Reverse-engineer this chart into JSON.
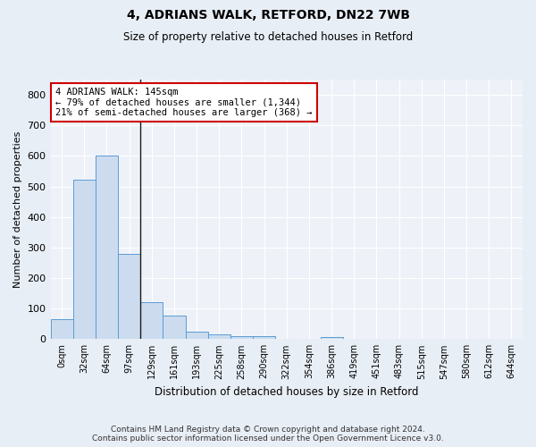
{
  "title_line1": "4, ADRIANS WALK, RETFORD, DN22 7WB",
  "title_line2": "Size of property relative to detached houses in Retford",
  "xlabel": "Distribution of detached houses by size in Retford",
  "ylabel": "Number of detached properties",
  "bar_labels": [
    "0sqm",
    "32sqm",
    "64sqm",
    "97sqm",
    "129sqm",
    "161sqm",
    "193sqm",
    "225sqm",
    "258sqm",
    "290sqm",
    "322sqm",
    "354sqm",
    "386sqm",
    "419sqm",
    "451sqm",
    "483sqm",
    "515sqm",
    "547sqm",
    "580sqm",
    "612sqm",
    "644sqm"
  ],
  "bar_values": [
    65,
    522,
    600,
    280,
    120,
    78,
    25,
    15,
    10,
    10,
    0,
    0,
    8,
    0,
    0,
    0,
    0,
    0,
    0,
    0,
    0
  ],
  "bar_color": "#ccdcee",
  "bar_edge_color": "#5b9bd5",
  "vline_color": "#1a1a1a",
  "annotation_text": "4 ADRIANS WALK: 145sqm\n← 79% of detached houses are smaller (1,344)\n21% of semi-detached houses are larger (368) →",
  "annotation_box_color": "#ffffff",
  "annotation_box_edge": "#cc0000",
  "property_bin_index": 4,
  "ylim": [
    0,
    850
  ],
  "yticks": [
    0,
    100,
    200,
    300,
    400,
    500,
    600,
    700,
    800
  ],
  "footer_line1": "Contains HM Land Registry data © Crown copyright and database right 2024.",
  "footer_line2": "Contains public sector information licensed under the Open Government Licence v3.0.",
  "bg_color": "#e8eef6",
  "plot_bg_color": "#eef2f8"
}
